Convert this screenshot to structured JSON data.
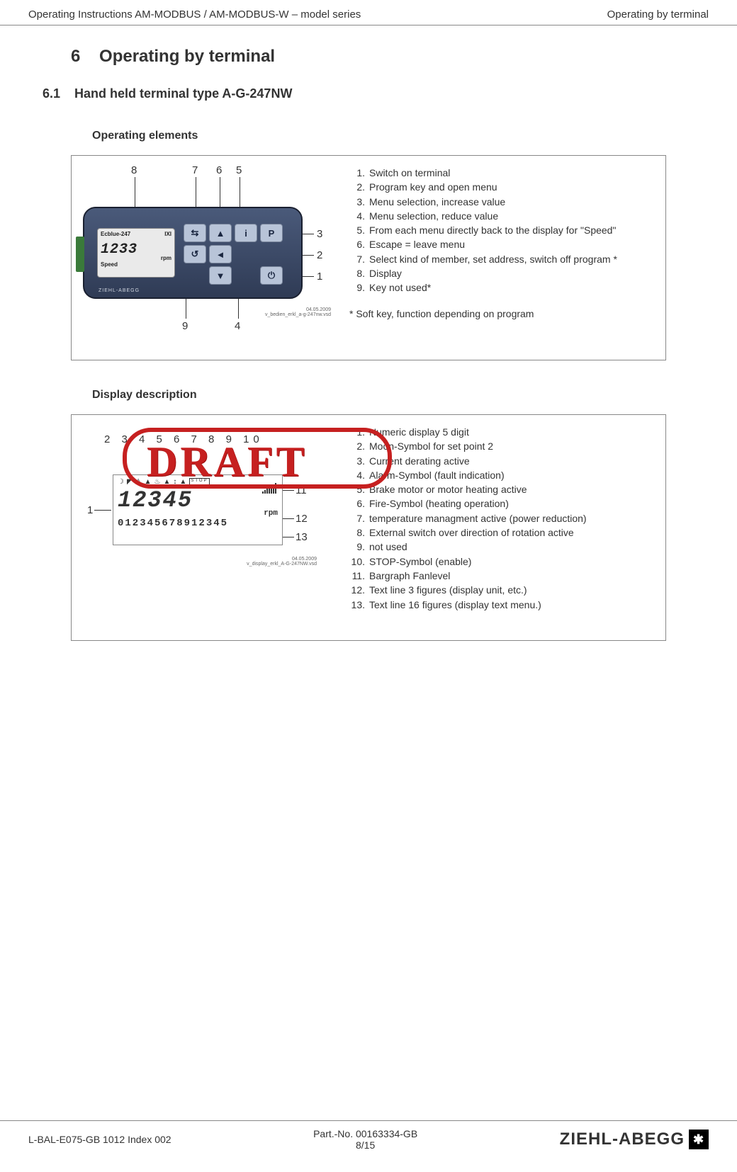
{
  "header": {
    "left": "Operating Instructions AM-MODBUS / AM-MODBUS-W – model series",
    "right": "Operating by terminal"
  },
  "chapter": {
    "num": "6",
    "title": "Operating by terminal"
  },
  "section": {
    "num": "6.1",
    "title": "Hand held terminal type A-G-247NW"
  },
  "operating": {
    "heading": "Operating elements",
    "device": {
      "model_left": "Ecblue-247",
      "model_right": "IXI",
      "digits": "1233",
      "unit": "rpm",
      "speed": "Speed",
      "brand": "ZIEHL-ABEGG"
    },
    "softkey_note": "* Soft key, function depending on program",
    "tinyfile": "04.05.2009\nv_bedien_erkl_a-g-247nw.vsd",
    "legend": [
      {
        "n": "1.",
        "t": "Switch on terminal"
      },
      {
        "n": "2.",
        "t": "Program key and open menu"
      },
      {
        "n": "3.",
        "t": "Menu selection, increase value"
      },
      {
        "n": "4.",
        "t": "Menu selection, reduce value"
      },
      {
        "n": "5.",
        "t": "From each menu directly back to the display for \"Speed\""
      },
      {
        "n": "6.",
        "t": "Escape = leave menu"
      },
      {
        "n": "7.",
        "t": "Select kind of member, set address, switch off program *"
      },
      {
        "n": "8.",
        "t": "Display"
      },
      {
        "n": "9.",
        "t": "Key not used*"
      }
    ],
    "callouts": [
      "1",
      "2",
      "3",
      "4",
      "5",
      "6",
      "7",
      "8",
      "9"
    ]
  },
  "display": {
    "heading": "Display description",
    "lcd": {
      "digits": "12345",
      "unit": "rpm",
      "textline": "012345678912345"
    },
    "tinyfile": "04.05.2009\nv_display_erkl_A-G-247NW.vsd",
    "legend": [
      {
        "n": "1.",
        "t": "Numeric display 5 digit"
      },
      {
        "n": "2.",
        "t": "Moon-Symbol for set point 2"
      },
      {
        "n": "3.",
        "t": "Current derating active"
      },
      {
        "n": "4.",
        "t": "Alarm-Symbol (fault indication)"
      },
      {
        "n": "5.",
        "t": "Brake motor or motor heating active"
      },
      {
        "n": "6.",
        "t": "Fire-Symbol (heating operation)"
      },
      {
        "n": "7.",
        "t": "temperature managment active (power reduction)"
      },
      {
        "n": "8.",
        "t": "External switch over direction of rotation active"
      },
      {
        "n": "9.",
        "t": "not used"
      },
      {
        "n": "10.",
        "t": "STOP-Symbol (enable)"
      },
      {
        "n": "11.",
        "t": "Bargraph Fanlevel"
      },
      {
        "n": "12.",
        "t": "Text line 3 figures (display unit, etc.)"
      },
      {
        "n": "13.",
        "t": "Text line 16 figures (display text menu.)"
      }
    ],
    "top_callouts": "2  3 4 5 6 7 8 9 10",
    "left_callout": "1",
    "right_callouts": [
      "11",
      "12",
      "13"
    ],
    "draft": "DRAFT"
  },
  "footer": {
    "left": "L-BAL-E075-GB 1012 Index 002",
    "center1": "Part.-No. 00163334-GB",
    "center2": "8/15",
    "brand": "ZIEHL-ABEGG"
  }
}
